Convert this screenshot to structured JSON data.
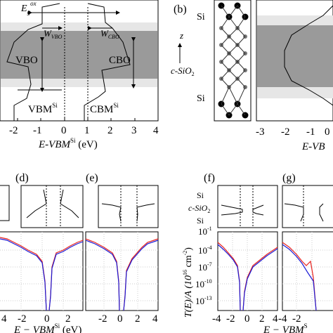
{
  "figure": {
    "panel_b_label": "(b)",
    "panel_d_label": "(d)",
    "panel_e_label": "(e)",
    "panel_f_label": "(f)",
    "panel_g_label": "(g)"
  },
  "panel_a": {
    "eg_label": "E",
    "eg_sub": "g",
    "eg_sup": "ox",
    "w_vbo": "W",
    "w_vbo_sub": "VBO",
    "w_cbo": "W",
    "w_cbo_sub": "CBO",
    "vbo": "VBO",
    "cbo": "CBO",
    "vbm": "VBM",
    "vbm_sup": "Si",
    "cbm": "CBM",
    "cbm_sup": "Si",
    "xlabel": "E-VBM",
    "xlabel_sup": "Si",
    "xlabel_unit": " (eV)",
    "xticks": [
      "-2",
      "-1",
      "0",
      "1",
      "2",
      "3",
      "4"
    ]
  },
  "panel_b": {
    "si_top": "Si",
    "si_bot": "Si",
    "z": "z",
    "csio2": "c-SiO",
    "csio2_sub": "2",
    "xlabel": "E-VB",
    "xticks": [
      "-3",
      "-2",
      "-1",
      "0"
    ]
  },
  "panel_de": {
    "xlabel": "E − VBM",
    "xlabel_sup": "Si",
    "xlabel_unit": " (eV)",
    "d_xticks": [
      "4",
      "-2",
      "0",
      "2"
    ],
    "e_xticks": [
      "-2",
      "0",
      "2",
      "4"
    ]
  },
  "panel_fg": {
    "si_top": "Si",
    "csio2": "c-SiO",
    "csio2_sub": "2",
    "si_bot": "Si",
    "ylabel": "T(E)/A (10",
    "ylabel_sup": "16",
    "ylabel_unit": " cm",
    "ylabel_sup2": "-2",
    "ylabel_end": ")",
    "yticks": [
      "10",
      "10",
      "10",
      "10",
      "10"
    ],
    "ytick_exps": [
      "-1",
      "-4",
      "-7",
      "-10",
      "-13"
    ],
    "f_xticks": [
      "-4",
      "-2",
      "0",
      "2",
      "4"
    ],
    "g_xticks": [
      "-4",
      "-2"
    ],
    "xlabel": "E − VBM",
    "xlabel_sup": "S"
  },
  "colors": {
    "red": "#e8231f",
    "blue": "#1c1cd6",
    "band": "#9a9a9a",
    "light": "#e6e6e6"
  }
}
